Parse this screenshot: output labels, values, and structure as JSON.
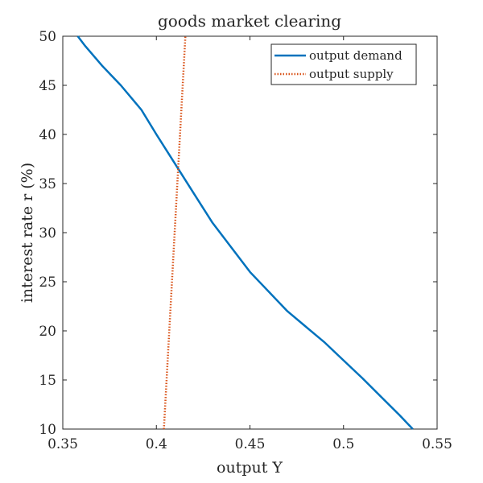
{
  "chart_data": {
    "type": "line",
    "title": "goods market clearing",
    "xlabel": "output Y",
    "ylabel": "interest rate r (%)",
    "xlim": [
      0.35,
      0.55
    ],
    "ylim": [
      10,
      50
    ],
    "x_ticks": [
      0.35,
      0.4,
      0.45,
      0.5,
      0.55
    ],
    "x_tick_labels": [
      "0.35",
      "0.4",
      "0.45",
      "0.5",
      "0.55"
    ],
    "y_ticks": [
      10,
      15,
      20,
      25,
      30,
      35,
      40,
      45,
      50
    ],
    "y_tick_labels": [
      "10",
      "15",
      "20",
      "25",
      "30",
      "35",
      "40",
      "45",
      "50"
    ],
    "grid": false,
    "legend_position": "top-right",
    "series": [
      {
        "name": "output demand",
        "color": "#0072BD",
        "style": "solid",
        "points": [
          [
            0.358,
            50
          ],
          [
            0.362,
            49
          ],
          [
            0.371,
            47
          ],
          [
            0.381,
            45
          ],
          [
            0.392,
            42.5
          ],
          [
            0.4,
            40
          ],
          [
            0.41,
            37
          ],
          [
            0.42,
            34
          ],
          [
            0.43,
            31
          ],
          [
            0.45,
            26
          ],
          [
            0.47,
            22
          ],
          [
            0.49,
            18.8
          ],
          [
            0.5,
            17
          ],
          [
            0.51,
            15.2
          ],
          [
            0.52,
            13.3
          ],
          [
            0.53,
            11.4
          ],
          [
            0.537,
            10
          ]
        ]
      },
      {
        "name": "output supply",
        "color": "#D95319",
        "style": "dotted",
        "points": [
          [
            0.404,
            10
          ],
          [
            0.4155,
            50
          ]
        ]
      }
    ]
  }
}
